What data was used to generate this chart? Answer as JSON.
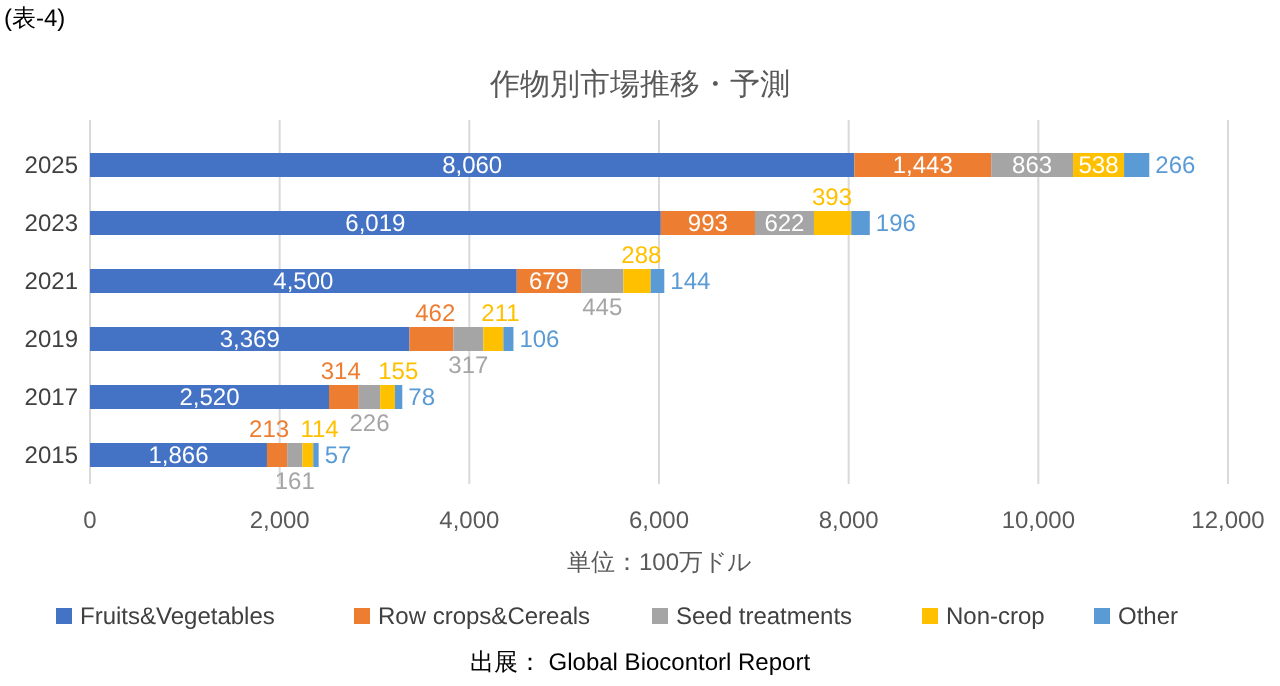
{
  "chart_data": {
    "type": "bar",
    "orientation": "horizontal",
    "stacked": true,
    "title": "作物別市場推移・予測",
    "xlabel": "単位：100万ドル",
    "annotations": [
      "(表-4)",
      "出展： Global Biocontorl Report"
    ],
    "categories": [
      "2025",
      "2023",
      "2021",
      "2019",
      "2017",
      "2015"
    ],
    "series": [
      {
        "name": "Fruits&Vegetables",
        "color": "#4472c4",
        "values": [
          8060,
          6019,
          4500,
          3369,
          2520,
          1866
        ],
        "value_labels": [
          "8,060",
          "6,019",
          "4,500",
          "3,369",
          "2,520",
          "1,866"
        ]
      },
      {
        "name": "Row crops&Cereals",
        "color": "#ed7d31",
        "values": [
          1443,
          993,
          679,
          462,
          314,
          213
        ],
        "value_labels": [
          "1,443",
          "993",
          "679",
          "462",
          "314",
          "213"
        ]
      },
      {
        "name": "Seed treatments",
        "color": "#a5a5a5",
        "values": [
          863,
          622,
          445,
          317,
          226,
          161
        ],
        "value_labels": [
          "863",
          "622",
          "445",
          "317",
          "226",
          "161"
        ]
      },
      {
        "name": "Non-crop",
        "color": "#ffc000",
        "values": [
          538,
          393,
          288,
          211,
          155,
          114
        ],
        "value_labels": [
          "538",
          "393",
          "288",
          "211",
          "155",
          "114"
        ]
      },
      {
        "name": "Other",
        "color": "#5b9bd5",
        "values": [
          266,
          196,
          144,
          106,
          78,
          57
        ],
        "value_labels": [
          "266",
          "196",
          "144",
          "106",
          "78",
          "57"
        ]
      }
    ],
    "xlim": [
      0,
      12000
    ],
    "xticks": [
      {
        "value": 0,
        "label": "0"
      },
      {
        "value": 2000,
        "label": "2,000"
      },
      {
        "value": 4000,
        "label": "4,000"
      },
      {
        "value": 6000,
        "label": "6,000"
      },
      {
        "value": 8000,
        "label": "8,000"
      },
      {
        "value": 10000,
        "label": "10,000"
      },
      {
        "value": 12000,
        "label": "12,000"
      }
    ],
    "grid": "x",
    "legend": "bottom"
  }
}
